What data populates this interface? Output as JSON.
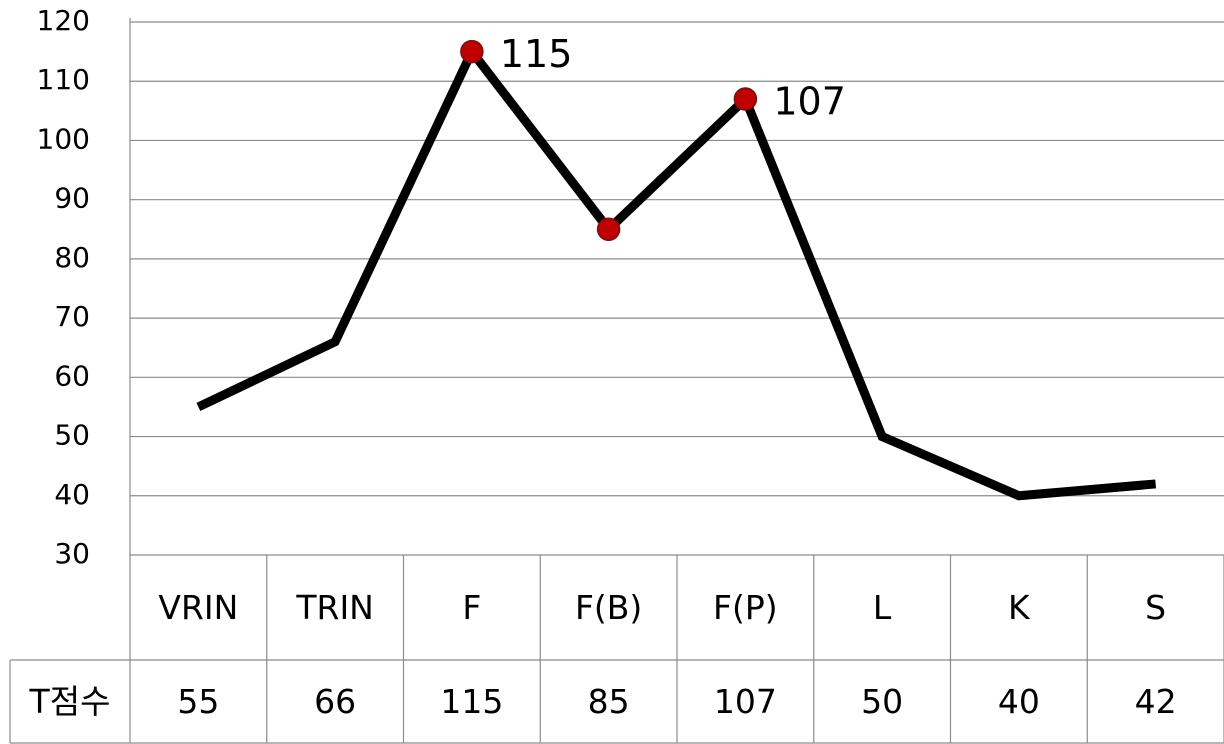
{
  "chart_data": {
    "type": "line",
    "categories": [
      "VRIN",
      "TRIN",
      "F",
      "F(B)",
      "F(P)",
      "L",
      "K",
      "S"
    ],
    "series": [
      {
        "name": "T점수",
        "color": "#000000",
        "values": [
          55,
          66,
          115,
          85,
          107,
          50,
          40,
          42
        ],
        "marker_color": "#c00000",
        "markers": [
          false,
          false,
          true,
          true,
          true,
          false,
          false,
          false
        ],
        "data_labels": [
          false,
          false,
          true,
          false,
          true,
          false,
          false,
          false
        ]
      }
    ],
    "ylim": [
      30,
      120
    ],
    "yticks": [
      30,
      40,
      50,
      60,
      70,
      80,
      90,
      100,
      110,
      120
    ],
    "grid": true,
    "data_table": true
  }
}
